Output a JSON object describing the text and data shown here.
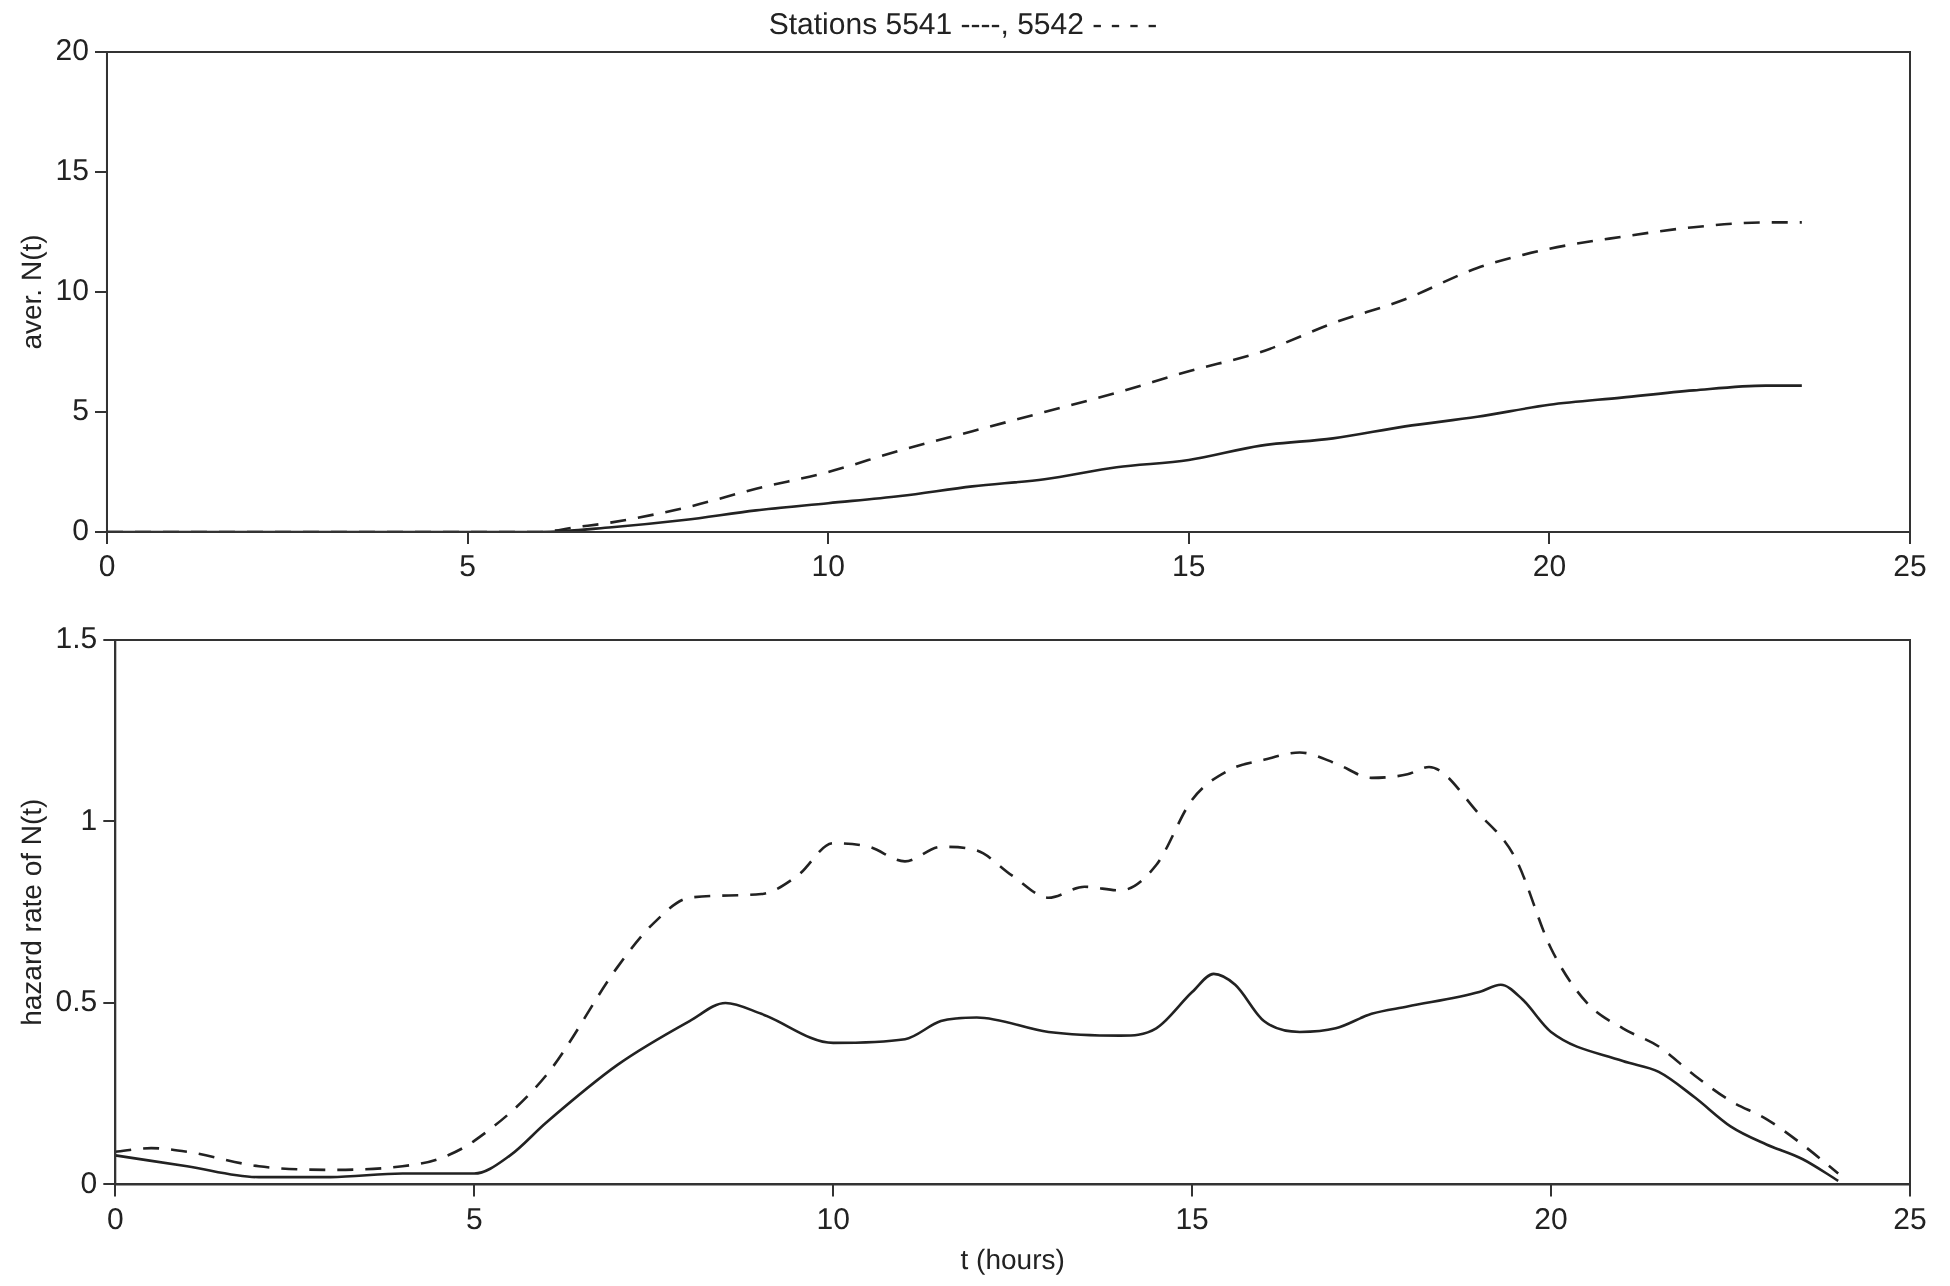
{
  "chart_data": [
    {
      "type": "line",
      "title": "Stations 5541 ----, 5542 - - - -",
      "ylabel": "aver. N(t)",
      "xlim": [
        0,
        25
      ],
      "xticks": [
        0,
        5,
        10,
        15,
        20,
        25
      ],
      "ylim": [
        0,
        20
      ],
      "yticks": [
        0,
        5,
        10,
        15,
        20
      ],
      "grid": false,
      "legend": false,
      "marker": "none",
      "series": [
        {
          "color": "#222222",
          "line_style": "solid",
          "x": [
            0,
            2,
            4,
            6,
            7,
            8,
            9,
            10,
            11,
            12,
            13,
            14,
            15,
            16,
            17,
            18,
            19,
            20,
            21,
            22,
            23,
            23.5
          ],
          "values": [
            0,
            0,
            0,
            0,
            0.2,
            0.5,
            0.9,
            1.2,
            1.5,
            1.9,
            2.2,
            2.7,
            3.0,
            3.6,
            3.9,
            4.4,
            4.8,
            5.3,
            5.6,
            5.9,
            6.1,
            6.1
          ]
        },
        {
          "color": "#222222",
          "line_style": "dashed",
          "x": [
            0,
            2,
            4,
            6,
            6.5,
            7,
            8,
            9,
            10,
            11,
            12,
            13,
            14,
            15,
            16,
            17,
            18,
            19,
            20,
            21,
            22,
            23,
            23.5
          ],
          "values": [
            0,
            0,
            0,
            0,
            0.2,
            0.4,
            1.0,
            1.8,
            2.5,
            3.4,
            4.2,
            5.0,
            5.8,
            6.7,
            7.5,
            8.7,
            9.7,
            11.0,
            11.8,
            12.3,
            12.7,
            12.9,
            12.9
          ]
        }
      ]
    },
    {
      "type": "line",
      "xlabel": "t (hours)",
      "ylabel": "hazard rate of N(t)",
      "xlim": [
        0,
        25
      ],
      "xticks": [
        0,
        5,
        10,
        15,
        20,
        25
      ],
      "ylim": [
        0,
        1.5
      ],
      "yticks": [
        0,
        0.5,
        1,
        1.5
      ],
      "grid": false,
      "legend": false,
      "marker": "none",
      "series": [
        {
          "color": "#222222",
          "line_style": "solid",
          "x": [
            0,
            1,
            2,
            3,
            4,
            5,
            5.5,
            6,
            7,
            8,
            8.5,
            9,
            10,
            11,
            11.5,
            12,
            13,
            14,
            14.5,
            15,
            15.3,
            15.6,
            16,
            16.5,
            17,
            17.5,
            18,
            19,
            19.3,
            19.6,
            20,
            21,
            21.5,
            22,
            22.5,
            23,
            23.5,
            24
          ],
          "values": [
            0.08,
            0.05,
            0.02,
            0.02,
            0.03,
            0.03,
            0.08,
            0.17,
            0.33,
            0.45,
            0.5,
            0.47,
            0.39,
            0.4,
            0.45,
            0.46,
            0.42,
            0.41,
            0.43,
            0.53,
            0.58,
            0.55,
            0.45,
            0.42,
            0.43,
            0.47,
            0.49,
            0.53,
            0.55,
            0.51,
            0.42,
            0.34,
            0.31,
            0.24,
            0.16,
            0.11,
            0.07,
            0.01
          ]
        },
        {
          "color": "#222222",
          "line_style": "dashed",
          "x": [
            0,
            0.5,
            1,
            2,
            3,
            4,
            4.5,
            5,
            6,
            7,
            7.5,
            8,
            9,
            9.5,
            10,
            10.5,
            11,
            11.5,
            12,
            12.5,
            13,
            13.5,
            14,
            14.5,
            15,
            15.5,
            16,
            16.5,
            17,
            17.5,
            18,
            18.3,
            19,
            19.5,
            20,
            20.5,
            21,
            21.5,
            22,
            22.5,
            23,
            23.5,
            24
          ],
          "values": [
            0.09,
            0.1,
            0.09,
            0.05,
            0.04,
            0.05,
            0.07,
            0.12,
            0.3,
            0.6,
            0.72,
            0.79,
            0.8,
            0.85,
            0.94,
            0.93,
            0.89,
            0.93,
            0.92,
            0.85,
            0.79,
            0.82,
            0.81,
            0.88,
            1.06,
            1.14,
            1.17,
            1.19,
            1.16,
            1.12,
            1.13,
            1.15,
            1.02,
            0.9,
            0.65,
            0.5,
            0.43,
            0.38,
            0.3,
            0.23,
            0.18,
            0.11,
            0.03
          ]
        }
      ]
    }
  ]
}
